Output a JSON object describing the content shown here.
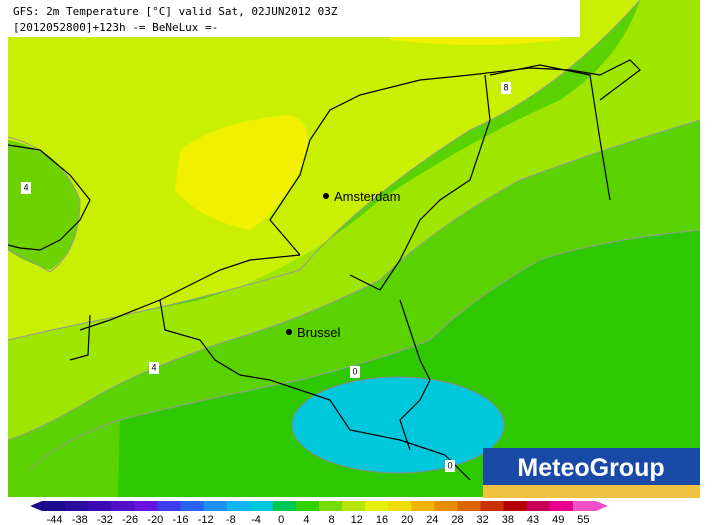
{
  "header": {
    "title": "GFS: 2m Temperature [°C] valid Sat, 02JUN2012 03Z",
    "subtitle": "[2012052800]+123h -= BeNeLux =-"
  },
  "cities": [
    {
      "label": "Amsterdam"
    },
    {
      "label": "Brussel"
    }
  ],
  "contour_labels": [
    "8",
    "4",
    "4",
    "0",
    "0"
  ],
  "logo": "MeteoGroup",
  "colorbar": {
    "ticks": [
      -44,
      -38,
      -32,
      -26,
      -20,
      -16,
      -12,
      -8,
      -4,
      0,
      4,
      8,
      12,
      16,
      20,
      24,
      28,
      32,
      38,
      43,
      49,
      55
    ],
    "colors": [
      "#1a0a8c",
      "#2a0aa0",
      "#3c0ab4",
      "#5010c8",
      "#6414dc",
      "#3c3cf0",
      "#2864f0",
      "#1e90f0",
      "#14b4f0",
      "#00c8dc",
      "#00c850",
      "#32d200",
      "#78dc00",
      "#b4e600",
      "#e6f000",
      "#f0dc00",
      "#f0b400",
      "#e68c00",
      "#dc6400",
      "#c83200",
      "#b40000",
      "#c8005a",
      "#e6008c",
      "#f050c8"
    ]
  }
}
